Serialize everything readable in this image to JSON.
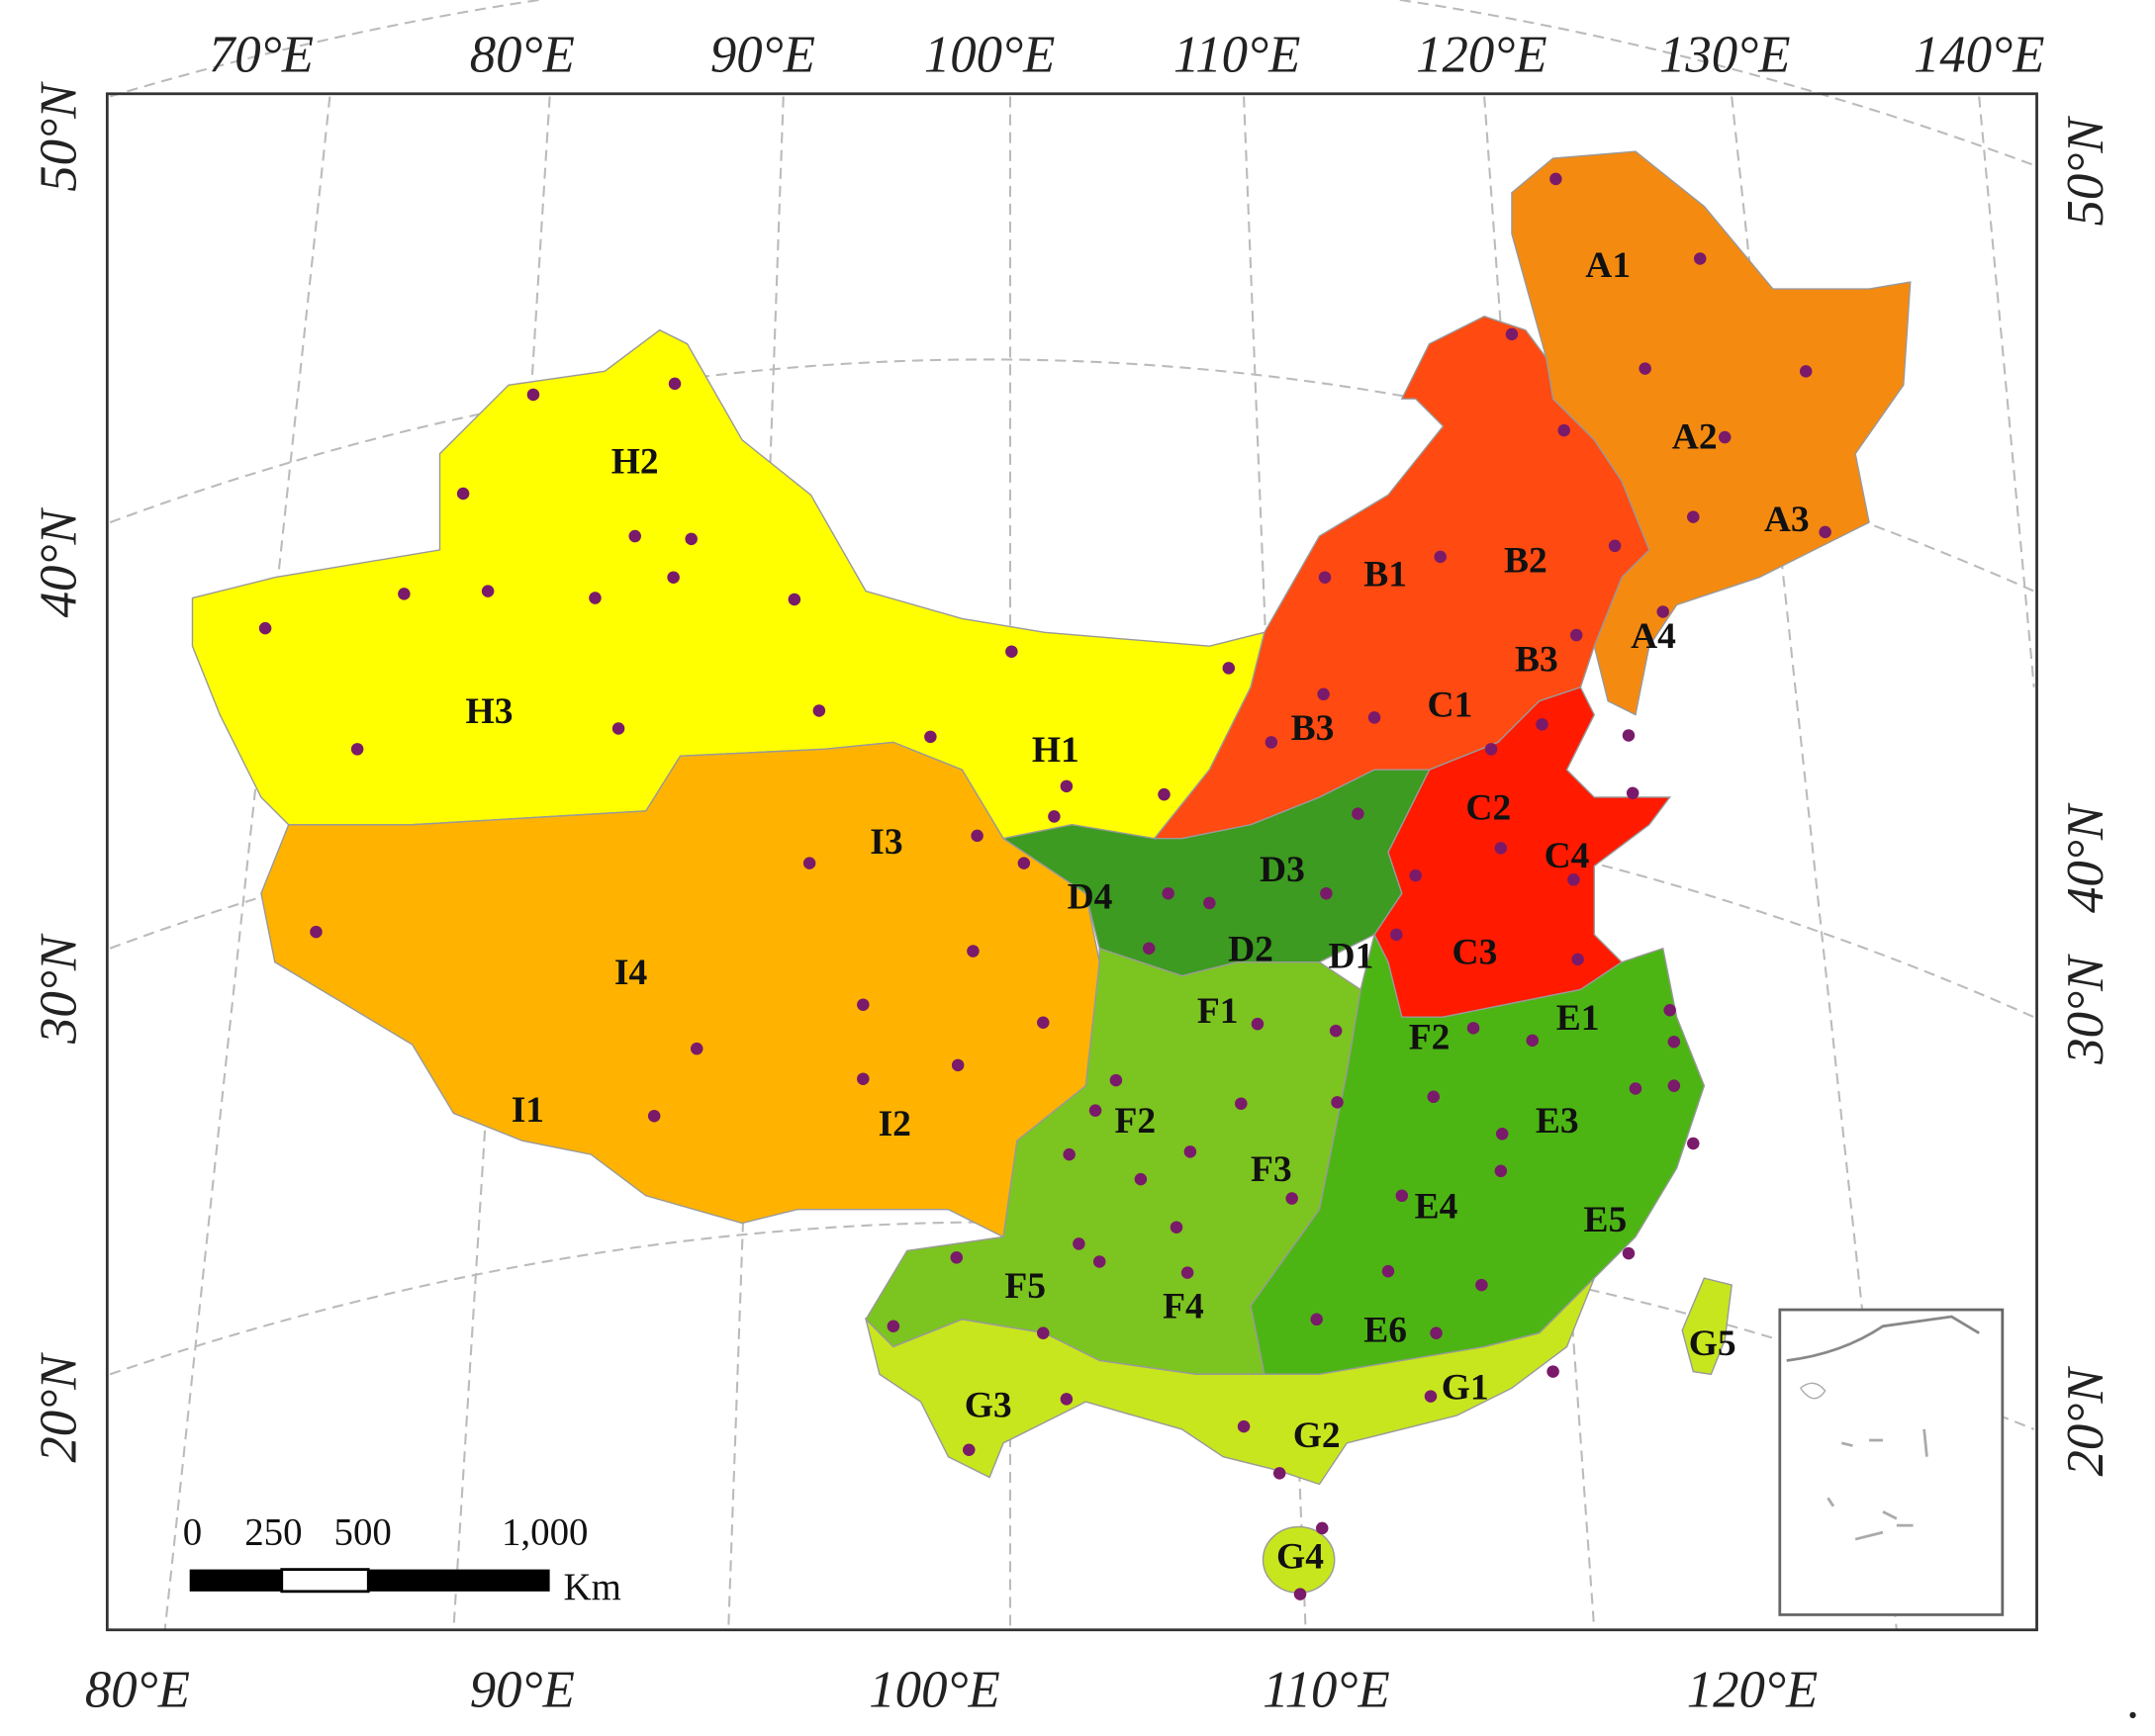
{
  "frame": {
    "top_labels": [
      "70°E",
      "80°E",
      "90°E",
      "100°E",
      "110°E",
      "120°E",
      "130°E",
      "140°E"
    ],
    "bottom_labels": [
      "80°E",
      "90°E",
      "100°E",
      "110°E",
      "120°E"
    ],
    "left_labels": [
      "50°N",
      "40°N",
      "30°N",
      "20°N"
    ],
    "right_labels": [
      "50°N",
      "40°N",
      "30°N",
      "20°N"
    ]
  },
  "regions": [
    "A1",
    "A2",
    "A3",
    "A4",
    "B1",
    "B2",
    "B3",
    "B3",
    "C1",
    "C2",
    "C3",
    "C4",
    "D1",
    "D2",
    "D3",
    "D4",
    "E1",
    "E3",
    "E4",
    "E5",
    "E6",
    "F1",
    "F2",
    "F2",
    "F3",
    "F4",
    "F5",
    "G1",
    "G2",
    "G3",
    "G4",
    "G5",
    "H1",
    "H2",
    "H3",
    "I1",
    "I2",
    "I3",
    "I4"
  ],
  "scale_bar": {
    "ticks": [
      "0",
      "250",
      "500",
      "1,000"
    ],
    "unit": "Km"
  },
  "trailing_text": "."
}
